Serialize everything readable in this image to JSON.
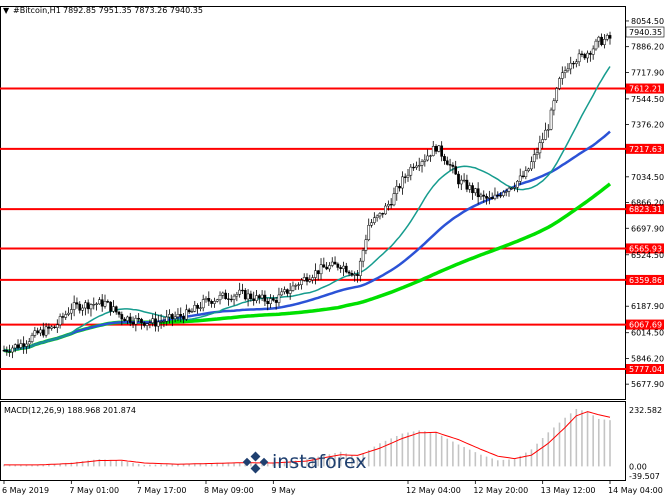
{
  "header": {
    "symbol": "#Bitcoin,H1",
    "ohlc": "7892.85 7951.35 7873.26 7940.35"
  },
  "price_axis": [
    "8054.50",
    "7886.20",
    "7717.90",
    "7544.50",
    "7376.20",
    "7034.50",
    "6866.20",
    "6697.90",
    "6524.50",
    "6187.90",
    "6014.50",
    "5846.20",
    "5677.90"
  ],
  "level_labels": [
    "7612.21",
    "7217.63",
    "6823.31",
    "6565.93",
    "6359.86",
    "6067.69",
    "5777.04"
  ],
  "current_price": "7940.35",
  "macd": {
    "label": "MACD(12,26,9) 188.968 201.874",
    "axis": [
      "232.582",
      "0.00",
      "-39.507"
    ]
  },
  "time_axis": [
    "6 May 2019",
    "7 May 01:00",
    "7 May 17:00",
    "8 May 09:00",
    "9 May",
    "12 May 04:00",
    "12 May 20:00",
    "13 May 12:00",
    "14 May 04:00"
  ],
  "watermark": "instaforex",
  "colors": {
    "level": "#ff0000",
    "ma_fast": "#169c8e",
    "ma_mid": "#2b52d6",
    "ma_slow": "#00e000",
    "signal": "#ff0000",
    "hist": "#c4c4c4"
  },
  "chart_data": {
    "type": "candlestick",
    "timeframe": "H1",
    "ylim": [
      5620,
      8100
    ],
    "levels": [
      7612.21,
      7217.63,
      6823.31,
      6565.93,
      6359.86,
      6067.69,
      5777.04
    ],
    "close_path": [
      [
        0,
        5900
      ],
      [
        6,
        5940
      ],
      [
        12,
        6010
      ],
      [
        18,
        6050
      ],
      [
        24,
        6180
      ],
      [
        30,
        6200
      ],
      [
        36,
        6210
      ],
      [
        42,
        6120
      ],
      [
        48,
        6090
      ],
      [
        54,
        6080
      ],
      [
        60,
        6110
      ],
      [
        66,
        6140
      ],
      [
        72,
        6220
      ],
      [
        78,
        6250
      ],
      [
        84,
        6270
      ],
      [
        90,
        6240
      ],
      [
        96,
        6220
      ],
      [
        102,
        6300
      ],
      [
        108,
        6380
      ],
      [
        114,
        6440
      ],
      [
        120,
        6460
      ],
      [
        126,
        6390
      ],
      [
        130,
        6720
      ],
      [
        134,
        6780
      ],
      [
        138,
        6880
      ],
      [
        142,
        7010
      ],
      [
        146,
        7120
      ],
      [
        150,
        7160
      ],
      [
        154,
        7230
      ],
      [
        158,
        7140
      ],
      [
        162,
        7010
      ],
      [
        166,
        6960
      ],
      [
        170,
        6900
      ],
      [
        174,
        6880
      ],
      [
        178,
        6950
      ],
      [
        182,
        6990
      ],
      [
        186,
        7050
      ],
      [
        190,
        7200
      ],
      [
        194,
        7370
      ],
      [
        198,
        7660
      ],
      [
        202,
        7800
      ],
      [
        206,
        7820
      ],
      [
        210,
        7880
      ],
      [
        212,
        7920
      ],
      [
        216,
        7940
      ]
    ],
    "macd_main": [
      [
        0,
        8
      ],
      [
        12,
        5
      ],
      [
        24,
        16
      ],
      [
        34,
        30
      ],
      [
        42,
        22
      ],
      [
        50,
        6
      ],
      [
        62,
        10
      ],
      [
        74,
        14
      ],
      [
        84,
        16
      ],
      [
        96,
        12
      ],
      [
        108,
        30
      ],
      [
        120,
        60
      ],
      [
        126,
        40
      ],
      [
        134,
        95
      ],
      [
        142,
        135
      ],
      [
        148,
        148
      ],
      [
        154,
        138
      ],
      [
        162,
        90
      ],
      [
        170,
        48
      ],
      [
        176,
        25
      ],
      [
        182,
        30
      ],
      [
        188,
        70
      ],
      [
        194,
        140
      ],
      [
        200,
        200
      ],
      [
        204,
        236
      ],
      [
        208,
        225
      ],
      [
        212,
        195
      ],
      [
        216,
        190
      ]
    ],
    "macd_signal": [
      [
        0,
        6
      ],
      [
        12,
        6
      ],
      [
        24,
        12
      ],
      [
        34,
        24
      ],
      [
        42,
        25
      ],
      [
        50,
        14
      ],
      [
        62,
        9
      ],
      [
        74,
        12
      ],
      [
        84,
        15
      ],
      [
        96,
        14
      ],
      [
        108,
        22
      ],
      [
        120,
        48
      ],
      [
        126,
        45
      ],
      [
        134,
        75
      ],
      [
        142,
        115
      ],
      [
        148,
        138
      ],
      [
        154,
        140
      ],
      [
        162,
        110
      ],
      [
        170,
        70
      ],
      [
        176,
        42
      ],
      [
        182,
        32
      ],
      [
        188,
        46
      ],
      [
        194,
        95
      ],
      [
        200,
        160
      ],
      [
        204,
        208
      ],
      [
        208,
        225
      ],
      [
        212,
        212
      ],
      [
        216,
        202
      ]
    ]
  }
}
